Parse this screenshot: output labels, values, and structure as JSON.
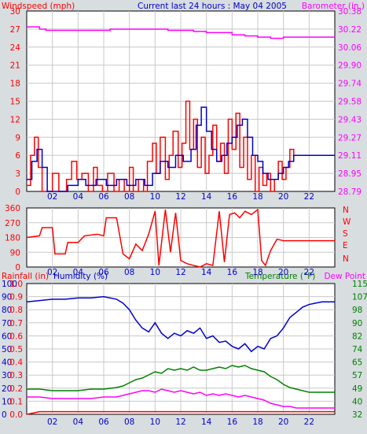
{
  "header": {
    "left_label": "Windspeed (mph)",
    "center_label": "Current last 24 hours : May 04 2005",
    "right_label": "Barometer (in.)"
  },
  "colors": {
    "background": "#d8dde0",
    "plot_bg": "#ffffff",
    "wind": "#ff0000",
    "gust_avg": "#0000cc",
    "barometer": "#ff00ff",
    "direction": "#ff0000",
    "rain": "#ff0000",
    "humidity": "#0000cc",
    "temperature": "#008000",
    "dew_point": "#ff00ff"
  },
  "chart_data": [
    {
      "type": "line",
      "panel": "wind_barometer",
      "title": "Current last 24 hours : May 04 2005",
      "xlabel": "",
      "x_range": [
        0,
        24
      ],
      "x_ticks": [
        "02",
        "04",
        "06",
        "08",
        "10",
        "12",
        "14",
        "16",
        "18",
        "20",
        "22"
      ],
      "y_left_label": "Windspeed (mph)",
      "y_left_ticks": [
        "0",
        "3",
        "6",
        "9",
        "12",
        "15",
        "18",
        "21",
        "24",
        "27",
        "30"
      ],
      "y_left_range": [
        0,
        30
      ],
      "y_right_label": "Barometer (in.)",
      "y_right_ticks": [
        "28.79",
        "28.95",
        "29.11",
        "29.27",
        "29.43",
        "29.58",
        "29.74",
        "29.90",
        "30.06",
        "30.22",
        "30.38"
      ],
      "y_right_range": [
        28.79,
        30.38
      ],
      "grid": true,
      "series": [
        {
          "color": "#ff0000",
          "axis": "left",
          "x": [
            0,
            0.3,
            0.6,
            0.9,
            1.2,
            1.5,
            2,
            2.5,
            2.8,
            3.1,
            3.5,
            3.9,
            4.3,
            4.8,
            5.2,
            5.5,
            5.9,
            6.3,
            6.8,
            7.2,
            7.6,
            8.0,
            8.3,
            8.7,
            9.1,
            9.4,
            9.8,
            10.1,
            10.4,
            10.8,
            11.1,
            11.4,
            11.8,
            12.1,
            12.4,
            12.7,
            13.0,
            13.3,
            13.6,
            13.9,
            14.2,
            14.5,
            14.8,
            15.1,
            15.4,
            15.7,
            16.0,
            16.3,
            16.6,
            16.9,
            17.2,
            17.5,
            17.8,
            18.1,
            18.4,
            18.7,
            19.0,
            19.3,
            19.6,
            19.9,
            20.2,
            20.5,
            20.8
          ],
          "values": [
            1,
            6,
            9,
            4,
            0,
            0,
            3,
            0,
            0,
            2,
            5,
            2,
            3,
            0,
            4,
            1,
            0,
            3,
            0,
            2,
            0,
            4,
            0,
            2,
            0,
            5,
            8,
            3,
            9,
            2,
            6,
            10,
            4,
            8,
            15,
            7,
            12,
            4,
            9,
            3,
            6,
            11,
            5,
            8,
            3,
            12,
            7,
            13,
            4,
            9,
            2,
            6,
            0,
            4,
            1,
            3,
            0,
            2,
            5,
            2,
            4,
            7,
            5
          ]
        },
        {
          "color": "#0000cc",
          "axis": "left",
          "x": [
            0,
            0.4,
            0.8,
            1.2,
            1.6,
            2.5,
            3.2,
            4.0,
            4.6,
            5.4,
            6.2,
            7.0,
            7.8,
            8.5,
            9.2,
            9.8,
            10.4,
            11.0,
            11.6,
            12.2,
            12.8,
            13.2,
            13.6,
            14.0,
            14.4,
            14.8,
            15.2,
            15.6,
            16.0,
            16.4,
            16.8,
            17.2,
            17.6,
            18.0,
            18.4,
            18.8,
            19.2,
            19.6,
            20.0,
            20.4,
            20.8,
            21.4,
            24
          ],
          "values": [
            2,
            5,
            7,
            4,
            0,
            0,
            1,
            2,
            1,
            2,
            1,
            2,
            1,
            2,
            1,
            3,
            5,
            4,
            6,
            5,
            7,
            11,
            14,
            10,
            7,
            5,
            6,
            8,
            9,
            11,
            12,
            9,
            6,
            5,
            3,
            2,
            2,
            3,
            4,
            5,
            6,
            6,
            6
          ]
        },
        {
          "color": "#ff00ff",
          "axis": "right",
          "x": [
            0,
            1,
            1.5,
            3,
            5,
            6,
            6.5,
            8,
            10,
            11,
            13,
            14,
            16,
            17,
            18,
            19,
            20,
            22,
            24
          ],
          "values": [
            30.24,
            30.22,
            30.21,
            30.21,
            30.21,
            30.21,
            30.22,
            30.22,
            30.22,
            30.21,
            30.2,
            30.19,
            30.17,
            30.16,
            30.15,
            30.14,
            30.15,
            30.15,
            30.15
          ]
        }
      ]
    },
    {
      "type": "line",
      "panel": "wind_direction",
      "x_range": [
        0,
        24
      ],
      "x_ticks": [
        "02",
        "04",
        "06",
        "08",
        "10",
        "12",
        "14",
        "16",
        "18",
        "20",
        "22"
      ],
      "y_left_ticks": [
        "0",
        "90",
        "180",
        "270",
        "360"
      ],
      "y_left_range": [
        0,
        360
      ],
      "y_right_ticks": [
        "N",
        "E",
        "S",
        "W",
        "N"
      ],
      "grid": true,
      "series": [
        {
          "color": "#ff0000",
          "x": [
            0,
            1.0,
            1.2,
            2.0,
            2.2,
            3.0,
            3.2,
            4.0,
            4.5,
            5.5,
            6.0,
            6.2,
            7.0,
            7.5,
            8.0,
            8.5,
            9.0,
            9.5,
            10.0,
            10.3,
            10.8,
            11.2,
            11.6,
            12.0,
            12.5,
            13.0,
            13.5,
            14.0,
            14.5,
            15.0,
            15.4,
            15.8,
            16.2,
            16.6,
            17.0,
            17.5,
            18.0,
            18.3,
            18.6,
            19.0,
            19.5,
            20.0,
            20.5,
            21.0,
            24
          ],
          "values": [
            180,
            190,
            240,
            240,
            80,
            80,
            150,
            150,
            190,
            200,
            190,
            300,
            300,
            80,
            50,
            140,
            100,
            200,
            340,
            10,
            350,
            90,
            330,
            40,
            20,
            10,
            0,
            20,
            10,
            340,
            30,
            320,
            330,
            300,
            340,
            320,
            350,
            40,
            10,
            100,
            170,
            160,
            160,
            160,
            160
          ]
        }
      ]
    },
    {
      "type": "line",
      "panel": "rain_humidity_temp",
      "x_range": [
        0,
        24
      ],
      "x_ticks": [
        "02",
        "04",
        "06",
        "08",
        "10",
        "12",
        "14",
        "16",
        "18",
        "20",
        "22"
      ],
      "y_rain_label": "Rainfall (in)",
      "y_rain_ticks": [
        "0.0",
        "0.1",
        "0.2",
        "0.3",
        "0.4",
        "0.5",
        "0.6",
        "0.7",
        "0.8",
        "0.9",
        "1.0"
      ],
      "y_humidity_label": "Humidity (%)",
      "y_humidity_ticks": [
        "0",
        "10",
        "20",
        "30",
        "40",
        "50",
        "60",
        "70",
        "80",
        "90",
        "100"
      ],
      "y_humidity_range": [
        0,
        100
      ],
      "y_temp_label": "Temperature (°F)",
      "y_dew_label": "Dew Point",
      "y_temp_ticks": [
        "32",
        "40",
        "49",
        "57",
        "65",
        "74",
        "82",
        "90",
        "98",
        "107",
        "115"
      ],
      "y_temp_range": [
        32,
        115
      ],
      "grid": true,
      "series": [
        {
          "color": "#0000cc",
          "axis": "humidity",
          "x": [
            0,
            1,
            2,
            3,
            4,
            5,
            6,
            7,
            7.5,
            8,
            8.5,
            9,
            9.5,
            10,
            10.5,
            11,
            11.5,
            12,
            12.5,
            13,
            13.5,
            14,
            14.5,
            15,
            15.5,
            16,
            16.5,
            17,
            17.5,
            18,
            18.5,
            19,
            19.5,
            20,
            20.5,
            21,
            21.5,
            22,
            22.5,
            23,
            24
          ],
          "values": [
            86,
            87,
            88,
            88,
            89,
            89,
            90,
            88,
            85,
            80,
            72,
            66,
            63,
            70,
            62,
            58,
            62,
            60,
            64,
            62,
            66,
            58,
            60,
            55,
            56,
            52,
            50,
            54,
            48,
            52,
            50,
            58,
            60,
            66,
            74,
            78,
            82,
            84,
            85,
            86,
            86
          ]
        },
        {
          "color": "#008000",
          "axis": "temp",
          "x": [
            0,
            1,
            2,
            3,
            4,
            5,
            6,
            7,
            7.5,
            8,
            8.5,
            9,
            9.5,
            10,
            10.5,
            11,
            11.5,
            12,
            12.5,
            13,
            13.5,
            14,
            14.5,
            15,
            15.5,
            16,
            16.5,
            17,
            17.5,
            18,
            18.5,
            19,
            19.5,
            20,
            20.5,
            21,
            22,
            23,
            24
          ],
          "values": [
            48,
            48,
            47,
            47,
            47,
            48,
            48,
            49,
            50,
            52,
            54,
            55,
            57,
            59,
            58,
            61,
            60,
            61,
            60,
            62,
            60,
            60,
            61,
            62,
            61,
            63,
            62,
            63,
            61,
            60,
            59,
            56,
            54,
            51,
            49,
            48,
            46,
            46,
            46
          ]
        },
        {
          "color": "#ff00ff",
          "axis": "temp",
          "x": [
            0,
            1,
            2,
            3,
            4,
            5,
            6,
            7,
            7.5,
            8,
            8.5,
            9,
            9.5,
            10,
            10.5,
            11,
            11.5,
            12,
            12.5,
            13,
            13.5,
            14,
            14.5,
            15,
            15.5,
            16,
            16.5,
            17,
            17.5,
            18,
            18.5,
            19,
            19.5,
            20,
            20.5,
            21,
            22,
            23,
            24
          ],
          "values": [
            43,
            43,
            42,
            42,
            42,
            42,
            43,
            43,
            44,
            45,
            46,
            47,
            47,
            46,
            48,
            47,
            46,
            47,
            46,
            45,
            46,
            44,
            45,
            44,
            45,
            44,
            43,
            44,
            43,
            42,
            41,
            39,
            38,
            37,
            37,
            36,
            36,
            36,
            36
          ]
        },
        {
          "color": "#ff0000",
          "axis": "rain",
          "x": [
            0,
            0.5,
            1,
            24
          ],
          "values": [
            0,
            0.01,
            0.02,
            0.02
          ]
        }
      ]
    }
  ]
}
